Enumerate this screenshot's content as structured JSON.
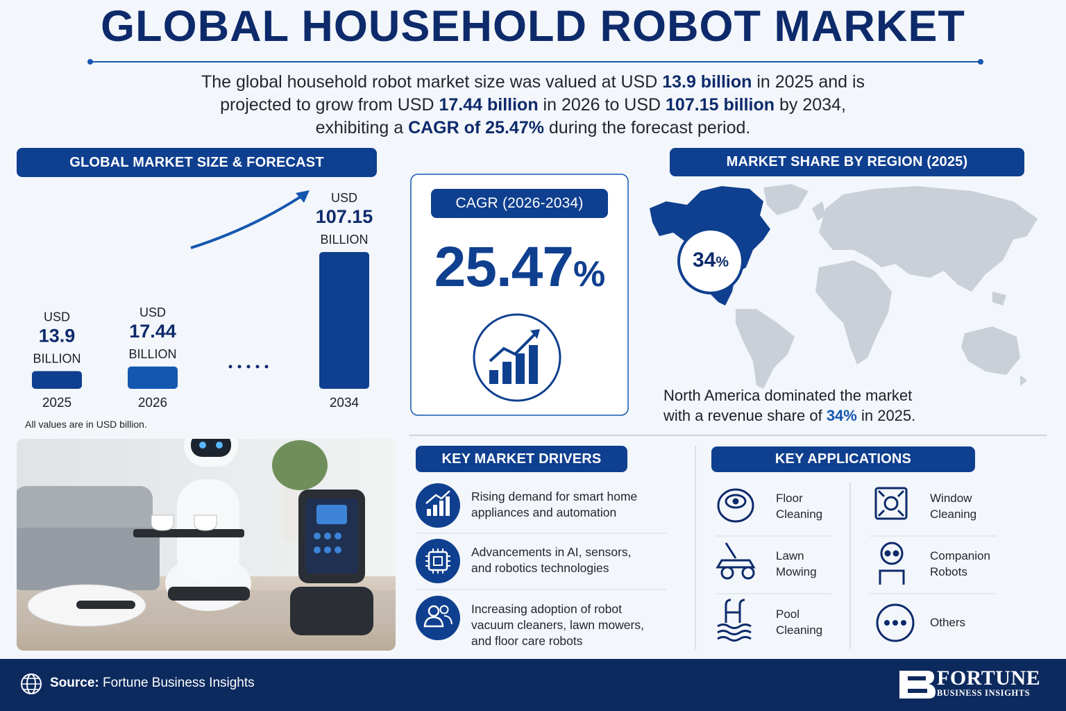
{
  "header": {
    "title": "GLOBAL HOUSEHOLD ROBOT MARKET",
    "intro": [
      [
        {
          "text": "The global household robot market size was valued at USD ",
          "bold": false
        },
        {
          "text": "13.9 billion",
          "bold": true
        },
        {
          "text": " in 2025 and is",
          "bold": false
        }
      ],
      [
        {
          "text": "projected to grow from USD ",
          "bold": false
        },
        {
          "text": "17.44 billion",
          "bold": true
        },
        {
          "text": " in 2026 to USD ",
          "bold": false
        },
        {
          "text": "107.15 billion",
          "bold": true
        },
        {
          "text": " by 2034,",
          "bold": false
        }
      ],
      [
        {
          "text": "exhibiting a ",
          "bold": false
        },
        {
          "text": "CAGR of 25.47%",
          "bold": true
        },
        {
          "text": " during the forecast period.",
          "bold": false
        }
      ]
    ]
  },
  "chart_data": {
    "type": "bar",
    "title": "GLOBAL MARKET SIZE & FORECAST",
    "categories": [
      "2025",
      "2026",
      null,
      "2034"
    ],
    "values": [
      13.9,
      17.44,
      null,
      107.15
    ],
    "value_prefix": "USD",
    "value_suffix": "BILLION",
    "colors": [
      "#0f3f8f",
      "#1457b0",
      null,
      "#0f3f8f"
    ],
    "note": "All values are in USD billion."
  },
  "cagr": {
    "title": "CAGR (2026-2034)",
    "value": 25.47,
    "unit": "%"
  },
  "region": {
    "title": "MARKET SHARE BY REGION (2025)",
    "share": 34,
    "unit": "%",
    "caption": [
      [
        {
          "text": "North America dominated the market",
          "bold": false
        }
      ],
      [
        {
          "text": "with a revenue share of ",
          "bold": false
        },
        {
          "text": "34%",
          "bold": true
        },
        {
          "text": " in 2025.",
          "bold": false
        }
      ]
    ]
  },
  "drivers": {
    "title": "KEY MARKET DRIVERS",
    "items": [
      [
        "Rising demand for smart home",
        "appliances and automation"
      ],
      [
        "Advancements in AI, sensors,",
        "and robotics technologies"
      ],
      [
        "Increasing adoption of robot",
        "vacuum cleaners, lawn mowers,",
        "and floor care robots"
      ]
    ]
  },
  "applications": {
    "title": "KEY APPLICATIONS",
    "items": [
      [
        "Floor",
        "Cleaning"
      ],
      [
        "Window",
        "Cleaning"
      ],
      [
        "Lawn",
        "Mowing"
      ],
      [
        "Companion",
        "Robots"
      ],
      [
        "Pool",
        "Cleaning"
      ],
      [
        "Others"
      ]
    ]
  },
  "footer": {
    "source_label": "Source:",
    "source": "Fortune Business Insights",
    "logo": [
      "FORTUNE",
      "BUSINESS INSIGHTS"
    ]
  }
}
